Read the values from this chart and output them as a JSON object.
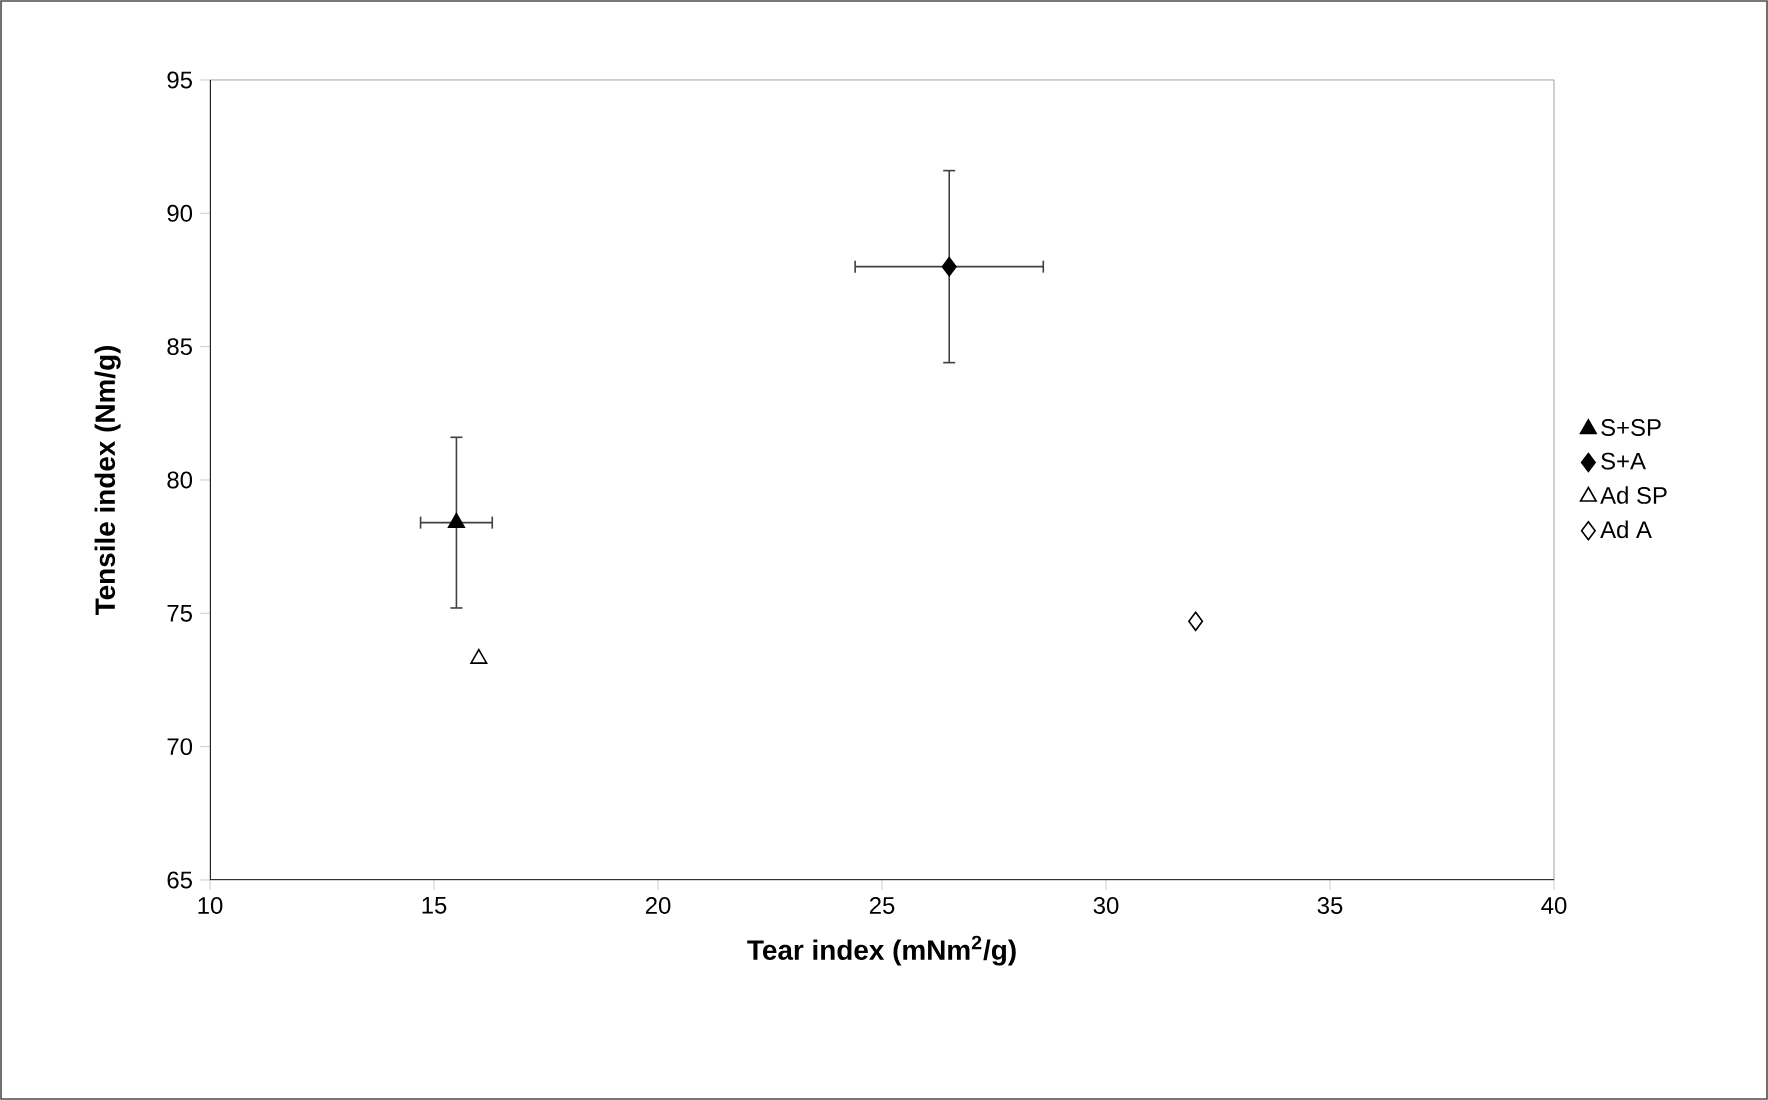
{
  "chart_data": {
    "type": "scatter",
    "xlabel": "Tear index (mNm$^{2}$/g)",
    "ylabel": "Tensile index (Nm/g)",
    "xlim": [
      10,
      40
    ],
    "xticks": [
      10,
      15,
      20,
      25,
      30,
      35,
      40
    ],
    "ylim": [
      65,
      95
    ],
    "yticks": [
      65,
      70,
      75,
      80,
      85,
      90,
      95
    ],
    "grid": false,
    "legend": "right",
    "series": [
      {
        "name": "S+SP",
        "color": "#000000",
        "marker": "triangle",
        "x": [
          15.5
        ],
        "values": [
          78.4
        ],
        "errors": [
          3.2
        ],
        "xerrors": [
          0.8
        ]
      },
      {
        "name": "S+A",
        "color": "#000000",
        "marker": "diamond",
        "x": [
          26.5
        ],
        "values": [
          88.0
        ],
        "errors": [
          3.6
        ],
        "xerrors": [
          2.1
        ]
      },
      {
        "name": "Ad SP",
        "color": "#ffffff",
        "marker": "triangle",
        "x": [
          16.0
        ],
        "values": [
          73.3
        ]
      },
      {
        "name": "Ad A",
        "color": "#ffffff",
        "marker": "diamond",
        "x": [
          32.0
        ],
        "values": [
          74.7
        ]
      }
    ]
  }
}
